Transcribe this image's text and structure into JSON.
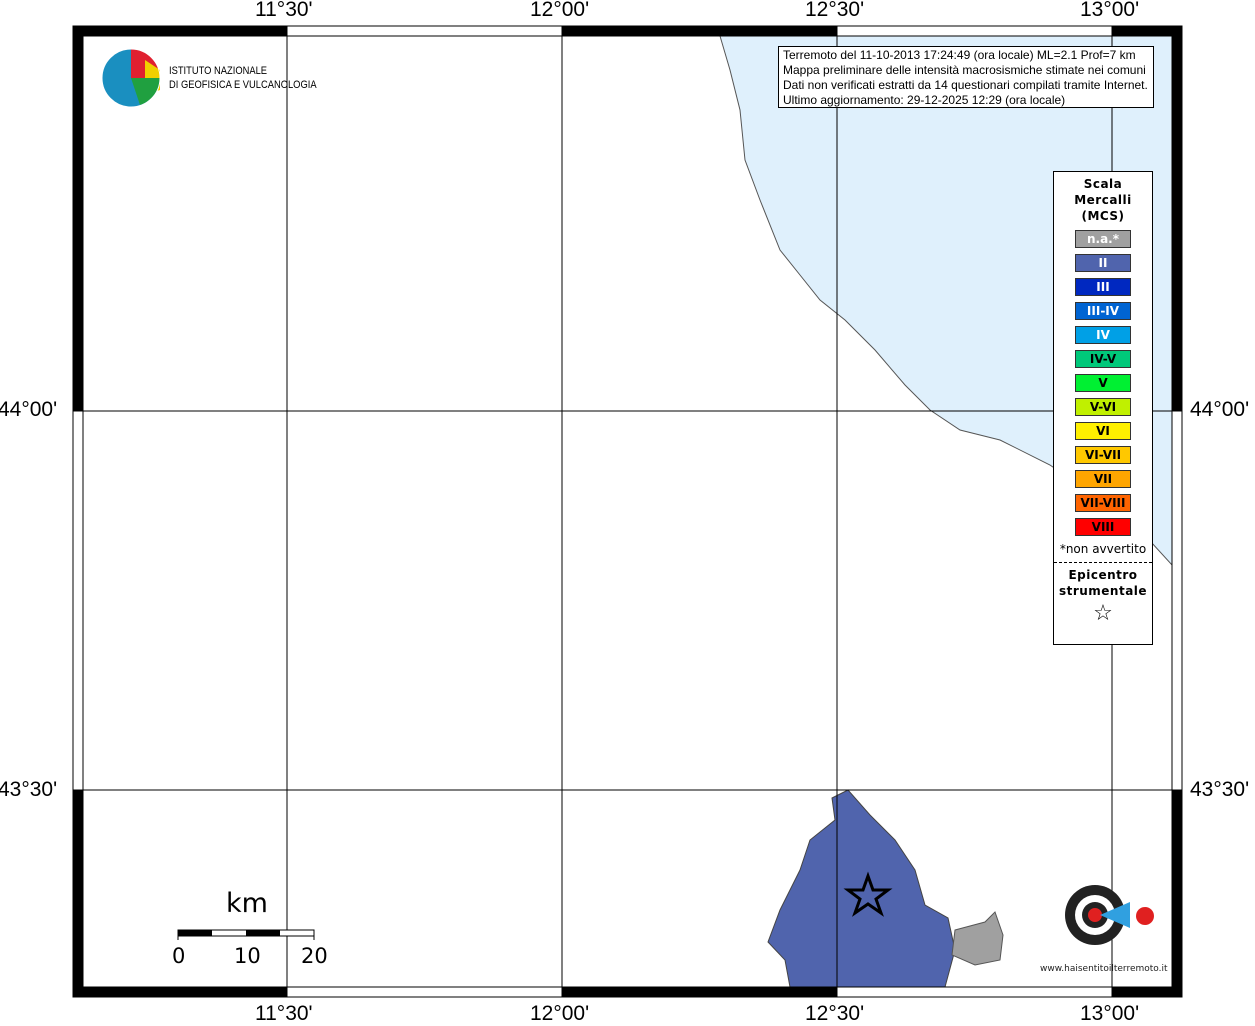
{
  "map": {
    "lon_ticks": [
      "11°30'",
      "12°00'",
      "12°30'",
      "13°00'"
    ],
    "lat_ticks": [
      "44°00'",
      "43°30'"
    ],
    "sea_color": "#dff0fc",
    "region_color": "#5064ad",
    "na_region_color": "#a0a0a0"
  },
  "info": {
    "lines": [
      "Terremoto del 11-10-2013 17:24:49 (ora locale) ML=2.1 Prof=7 km",
      "Mappa preliminare delle intensità macrosismiche stimate nei comuni",
      "Dati non verificati estratti da 14 questionari compilati tramite Internet.",
      "Ultimo aggiornamento: 29-12-2025 12:29 (ora locale)"
    ]
  },
  "logo": {
    "line1": "ISTITUTO NAZIONALE",
    "line2": "DI GEOFISICA E VULCANOLOGIA",
    "haisentito": "www.haisentitoilterremoto.it"
  },
  "legend": {
    "title": [
      "Scala",
      "Mercalli",
      "(MCS)"
    ],
    "items": [
      {
        "label": "n.a.*",
        "color": "#a0a0a0",
        "text": "#fff"
      },
      {
        "label": "II",
        "color": "#5064ad",
        "text": "#fff"
      },
      {
        "label": "III",
        "color": "#0028c0",
        "text": "#fff"
      },
      {
        "label": "III-IV",
        "color": "#0064d2",
        "text": "#fff"
      },
      {
        "label": "IV",
        "color": "#00a0e6",
        "text": "#fff"
      },
      {
        "label": "IV-V",
        "color": "#00c87a",
        "text": "#000"
      },
      {
        "label": "V",
        "color": "#00f032",
        "text": "#000"
      },
      {
        "label": "V-VI",
        "color": "#c0f000",
        "text": "#000"
      },
      {
        "label": "VI",
        "color": "#fff000",
        "text": "#000"
      },
      {
        "label": "VI-VII",
        "color": "#ffc800",
        "text": "#000"
      },
      {
        "label": "VII",
        "color": "#ffa500",
        "text": "#000"
      },
      {
        "label": "VII-VIII",
        "color": "#ff6400",
        "text": "#000"
      },
      {
        "label": "VIII",
        "color": "#ff0000",
        "text": "#000"
      }
    ],
    "footnote": "*non avvertito",
    "epicentro": [
      "Epicentro",
      "strumentale"
    ],
    "star": "☆"
  },
  "scale": {
    "unit": "km",
    "labels": [
      "0",
      "10",
      "20"
    ]
  }
}
